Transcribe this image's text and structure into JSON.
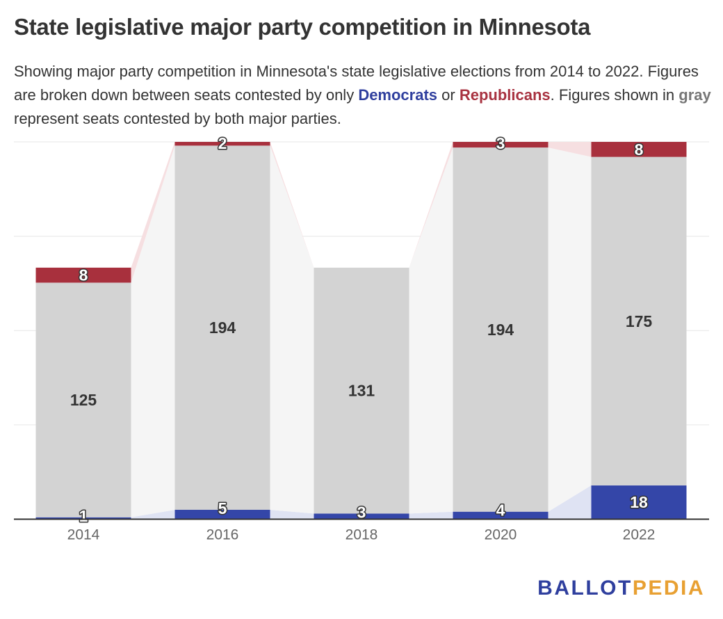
{
  "header": {
    "title": "State legislative major party competition in Minnesota",
    "subtitle_parts": {
      "p1": "Showing major party competition in Minnesota's state legislative elections from 2014 to 2022. Figures are broken down between seats contested by only ",
      "dem": "Democrats",
      "p2": " or ",
      "rep": "Republicans",
      "p3": ". Figures shown in ",
      "gray": "gray",
      "p4": " represent seats contested by both major parties."
    }
  },
  "colors": {
    "democrats": "#3446a8",
    "republicans": "#a8303d",
    "both": "#d3d3d3",
    "dem_band": "#dfe3f3",
    "rep_band": "#f6dfe1",
    "both_band": "#f5f5f5",
    "gridline": "#e6e6e6",
    "axis": "#333333"
  },
  "chart_data": {
    "type": "bar",
    "stacked": true,
    "categories": [
      "2014",
      "2016",
      "2018",
      "2020",
      "2022"
    ],
    "series": [
      {
        "name": "Democrats",
        "key": "dem",
        "values": [
          1,
          5,
          3,
          4,
          18
        ]
      },
      {
        "key": "both",
        "values": [
          125,
          194,
          131,
          194,
          175
        ]
      },
      {
        "name": "Republicans",
        "key": "rep",
        "values": [
          8,
          2,
          0,
          3,
          8
        ]
      }
    ],
    "ylim": [
      0,
      201
    ],
    "grid": true,
    "y_tick_labels_shown": false,
    "xlabel": "",
    "ylabel": ""
  },
  "branding": {
    "logo_part1": "BALLOT",
    "logo_part2": "PEDIA"
  }
}
